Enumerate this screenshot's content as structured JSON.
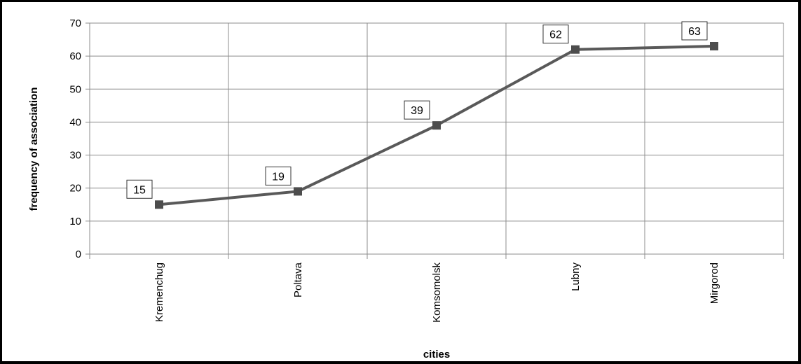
{
  "chart_data": {
    "type": "line",
    "title": "",
    "xlabel": "cities",
    "ylabel": "frequency of association",
    "categories": [
      "Kremenchug",
      "Poltava",
      "Komsomolsk",
      "Lubny",
      "Mirgorod"
    ],
    "series": [
      {
        "values": [
          15,
          19,
          39,
          62,
          63
        ]
      }
    ],
    "data_labels": [
      "15",
      "19",
      "39",
      "62",
      "63"
    ],
    "ylim": [
      0,
      70
    ],
    "yticks": [
      0,
      10,
      20,
      30,
      40,
      50,
      60,
      70
    ],
    "ytick_labels": [
      "0",
      "10",
      "20",
      "30",
      "40",
      "50",
      "60",
      "70"
    ],
    "grid": true,
    "legend": "none",
    "colors": {
      "line": "#595959",
      "marker": "#4d4d4d",
      "grid": "#8c8c8c",
      "axis": "#8c8c8c"
    }
  }
}
